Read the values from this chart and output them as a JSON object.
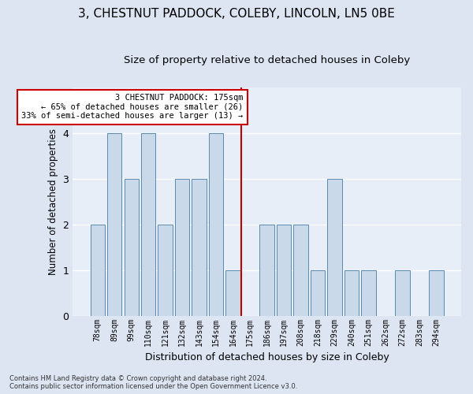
{
  "title1": "3, CHESTNUT PADDOCK, COLEBY, LINCOLN, LN5 0BE",
  "title2": "Size of property relative to detached houses in Coleby",
  "xlabel": "Distribution of detached houses by size in Coleby",
  "ylabel": "Number of detached properties",
  "categories": [
    "78sqm",
    "89sqm",
    "99sqm",
    "110sqm",
    "121sqm",
    "132sqm",
    "143sqm",
    "154sqm",
    "164sqm",
    "175sqm",
    "186sqm",
    "197sqm",
    "208sqm",
    "218sqm",
    "229sqm",
    "240sqm",
    "251sqm",
    "262sqm",
    "272sqm",
    "283sqm",
    "294sqm"
  ],
  "values": [
    2,
    4,
    3,
    4,
    2,
    3,
    3,
    4,
    1,
    0,
    2,
    2,
    2,
    1,
    3,
    1,
    1,
    0,
    1,
    0,
    1
  ],
  "bar_color": "#c9d9ea",
  "bar_edge_color": "#5a8ab0",
  "vline_index": 9,
  "vline_color": "#bb0000",
  "annotation_text": "3 CHESTNUT PADDOCK: 175sqm\n← 65% of detached houses are smaller (26)\n33% of semi-detached houses are larger (13) →",
  "annotation_box_color": "#cc0000",
  "ylim": [
    0,
    5
  ],
  "yticks": [
    0,
    1,
    2,
    3,
    4
  ],
  "footnote1": "Contains HM Land Registry data © Crown copyright and database right 2024.",
  "footnote2": "Contains public sector information licensed under the Open Government Licence v3.0.",
  "bg_color": "#e8eef8",
  "fig_bg_color": "#dde5f2",
  "grid_color": "#ffffff",
  "title1_fontsize": 11,
  "title2_fontsize": 9.5,
  "ylabel_fontsize": 8.5,
  "xlabel_fontsize": 9
}
